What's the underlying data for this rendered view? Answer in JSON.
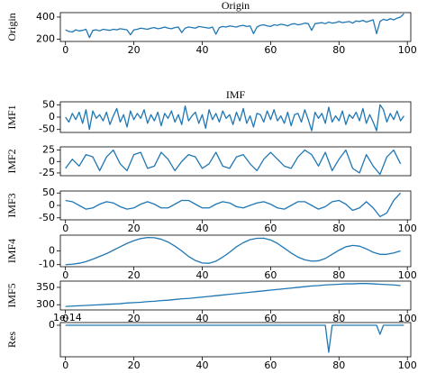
{
  "chart_data": [
    {
      "type": "line",
      "title": "Origin",
      "ylabel": "Origin",
      "color": "#1f77b4",
      "x": [
        0,
        1,
        2,
        3,
        4,
        5,
        6,
        7,
        8,
        9,
        10,
        11,
        12,
        13,
        14,
        15,
        16,
        17,
        18,
        19,
        20,
        21,
        22,
        23,
        24,
        25,
        26,
        27,
        28,
        29,
        30,
        31,
        32,
        33,
        34,
        35,
        36,
        37,
        38,
        39,
        40,
        41,
        42,
        43,
        44,
        45,
        46,
        47,
        48,
        49,
        50,
        51,
        52,
        53,
        54,
        55,
        56,
        57,
        58,
        59,
        60,
        61,
        62,
        63,
        64,
        65,
        66,
        67,
        68,
        69,
        70,
        71,
        72,
        73,
        74,
        75,
        76,
        77,
        78,
        79,
        80,
        81,
        82,
        83,
        84,
        85,
        86,
        87,
        88,
        89,
        90,
        91,
        92,
        93,
        94,
        95,
        96,
        97,
        98,
        99
      ],
      "values": [
        285,
        270,
        265,
        285,
        275,
        280,
        290,
        215,
        280,
        285,
        275,
        290,
        285,
        280,
        290,
        285,
        295,
        290,
        285,
        240,
        285,
        290,
        300,
        295,
        290,
        300,
        305,
        295,
        300,
        310,
        300,
        295,
        305,
        310,
        260,
        300,
        310,
        305,
        300,
        315,
        310,
        305,
        300,
        310,
        245,
        305,
        315,
        310,
        320,
        315,
        310,
        320,
        325,
        315,
        320,
        250,
        310,
        325,
        330,
        320,
        315,
        330,
        325,
        335,
        330,
        320,
        335,
        340,
        330,
        335,
        345,
        340,
        280,
        340,
        345,
        350,
        340,
        355,
        345,
        350,
        360,
        350,
        355,
        360,
        345,
        365,
        360,
        370,
        355,
        365,
        375,
        250,
        360,
        380,
        370,
        385,
        375,
        390,
        400,
        430
      ],
      "xlim": [
        -1.5,
        101
      ],
      "ylim": [
        180,
        440
      ],
      "xticks": [
        0,
        20,
        40,
        60,
        80,
        100
      ],
      "yticks": [
        200,
        400
      ]
    },
    {
      "type": "line",
      "title": "IMF",
      "ylabel": "IMF1",
      "color": "#1f77b4",
      "x": [
        0,
        1,
        2,
        3,
        4,
        5,
        6,
        7,
        8,
        9,
        10,
        11,
        12,
        13,
        14,
        15,
        16,
        17,
        18,
        19,
        20,
        21,
        22,
        23,
        24,
        25,
        26,
        27,
        28,
        29,
        30,
        31,
        32,
        33,
        34,
        35,
        36,
        37,
        38,
        39,
        40,
        41,
        42,
        43,
        44,
        45,
        46,
        47,
        48,
        49,
        50,
        51,
        52,
        53,
        54,
        55,
        56,
        57,
        58,
        59,
        60,
        61,
        62,
        63,
        64,
        65,
        66,
        67,
        68,
        69,
        70,
        71,
        72,
        73,
        74,
        75,
        76,
        77,
        78,
        79,
        80,
        81,
        82,
        83,
        84,
        85,
        86,
        87,
        88,
        89,
        90,
        91,
        92,
        93,
        94,
        95,
        96,
        97,
        98,
        99
      ],
      "values": [
        0,
        -20,
        15,
        -10,
        20,
        -25,
        30,
        -50,
        25,
        -5,
        10,
        -15,
        20,
        -30,
        5,
        35,
        -20,
        10,
        -40,
        25,
        -10,
        15,
        -5,
        30,
        -25,
        10,
        -15,
        20,
        -35,
        15,
        -5,
        25,
        -20,
        10,
        -30,
        45,
        -15,
        5,
        20,
        -25,
        10,
        -45,
        30,
        -10,
        15,
        -20,
        25,
        -5,
        10,
        -30,
        20,
        -15,
        35,
        -25,
        5,
        -40,
        15,
        10,
        -20,
        25,
        -10,
        30,
        -15,
        5,
        -25,
        20,
        -35,
        10,
        15,
        -20,
        30,
        -10,
        -55,
        20,
        -5,
        15,
        -25,
        40,
        -20,
        5,
        -15,
        25,
        -30,
        10,
        -5,
        20,
        -15,
        35,
        -25,
        10,
        -20,
        -55,
        50,
        30,
        -20,
        15,
        -10,
        25,
        -15,
        5
      ],
      "xlim": [
        -1.5,
        101
      ],
      "ylim": [
        -62,
        62
      ],
      "yticks": [
        -50,
        0,
        50
      ]
    },
    {
      "type": "line",
      "ylabel": "IMF2",
      "color": "#1f77b4",
      "x": [
        0,
        2,
        4,
        6,
        8,
        10,
        12,
        14,
        16,
        18,
        20,
        22,
        24,
        26,
        28,
        30,
        32,
        34,
        36,
        38,
        40,
        42,
        44,
        46,
        48,
        50,
        52,
        54,
        56,
        58,
        60,
        62,
        64,
        66,
        68,
        70,
        72,
        74,
        76,
        78,
        80,
        82,
        84,
        86,
        88,
        90,
        92,
        94,
        96,
        98
      ],
      "values": [
        -15,
        5,
        -10,
        15,
        10,
        -20,
        10,
        25,
        -5,
        -20,
        15,
        20,
        -15,
        -10,
        20,
        5,
        -20,
        0,
        15,
        10,
        -15,
        -5,
        20,
        -10,
        -15,
        10,
        15,
        -5,
        -20,
        5,
        20,
        5,
        -10,
        -15,
        10,
        25,
        15,
        -10,
        20,
        -20,
        5,
        25,
        -15,
        -25,
        15,
        -10,
        -28,
        10,
        25,
        -5
      ],
      "xlim": [
        -1.5,
        101
      ],
      "ylim": [
        -31,
        32
      ],
      "yticks": [
        -25,
        0,
        25
      ]
    },
    {
      "type": "line",
      "ylabel": "IMF3",
      "color": "#1f77b4",
      "x": [
        0,
        2,
        4,
        6,
        8,
        10,
        12,
        14,
        16,
        18,
        20,
        22,
        24,
        26,
        28,
        30,
        32,
        34,
        36,
        38,
        40,
        42,
        44,
        46,
        48,
        50,
        52,
        54,
        56,
        58,
        60,
        62,
        64,
        66,
        68,
        70,
        72,
        74,
        76,
        78,
        80,
        82,
        84,
        86,
        88,
        90,
        92,
        94,
        96,
        98
      ],
      "values": [
        20,
        15,
        0,
        -15,
        -10,
        5,
        15,
        10,
        -5,
        -15,
        -10,
        5,
        15,
        5,
        -10,
        -10,
        5,
        20,
        20,
        5,
        -10,
        -10,
        5,
        15,
        10,
        -5,
        -10,
        0,
        10,
        15,
        5,
        -10,
        -15,
        0,
        15,
        15,
        0,
        -15,
        -5,
        15,
        20,
        5,
        -20,
        -10,
        15,
        -10,
        -45,
        -30,
        20,
        50
      ],
      "xlim": [
        -1.5,
        101
      ],
      "ylim": [
        -58,
        58
      ],
      "xticks": [
        0,
        20,
        40,
        60,
        80,
        100
      ],
      "yticks": [
        -50,
        0,
        50
      ]
    },
    {
      "type": "line",
      "ylabel": "IMF4",
      "color": "#1f77b4",
      "x": [
        0,
        2,
        4,
        6,
        8,
        10,
        12,
        14,
        16,
        18,
        20,
        22,
        24,
        26,
        28,
        30,
        32,
        34,
        36,
        38,
        40,
        42,
        44,
        46,
        48,
        50,
        52,
        54,
        56,
        58,
        60,
        62,
        64,
        66,
        68,
        70,
        72,
        74,
        76,
        78,
        80,
        82,
        84,
        86,
        88,
        90,
        92,
        94,
        96,
        98
      ],
      "values": [
        -10,
        -9.7,
        -9,
        -7.8,
        -6,
        -4,
        -2,
        0.5,
        3,
        5.5,
        7.5,
        9,
        9.8,
        9.6,
        8.5,
        6.5,
        3.5,
        0,
        -4,
        -7,
        -8.8,
        -9,
        -7.5,
        -4.5,
        -1,
        3,
        6,
        8.2,
        9.2,
        9.3,
        8,
        5.5,
        2,
        -1.5,
        -4.5,
        -6.5,
        -7.5,
        -7.2,
        -5.5,
        -2.5,
        0.5,
        3,
        4,
        3.5,
        1.5,
        -1,
        -2.5,
        -2.5,
        -1.5,
        0
      ],
      "xlim": [
        -1.5,
        101
      ],
      "ylim": [
        -11.5,
        11.5
      ],
      "xticks": [
        0,
        20,
        40,
        60,
        80,
        100
      ],
      "yticks": [
        -10,
        0
      ]
    },
    {
      "type": "line",
      "ylabel": "IMF5",
      "color": "#1f77b4",
      "x": [
        0,
        2,
        4,
        6,
        8,
        10,
        12,
        14,
        16,
        18,
        20,
        22,
        24,
        26,
        28,
        30,
        32,
        34,
        36,
        38,
        40,
        42,
        44,
        46,
        48,
        50,
        52,
        54,
        56,
        58,
        60,
        62,
        64,
        66,
        68,
        70,
        72,
        74,
        76,
        78,
        80,
        82,
        84,
        86,
        88,
        90,
        92,
        94,
        96,
        98
      ],
      "values": [
        295,
        296,
        297,
        298,
        299,
        300,
        301,
        302,
        303,
        305,
        306,
        307,
        309,
        310,
        312,
        313,
        315,
        317,
        318,
        320,
        322,
        324,
        326,
        328,
        330,
        332,
        334,
        336,
        338,
        340,
        342,
        344,
        346,
        348,
        350,
        352,
        354,
        355,
        357,
        358,
        359,
        360,
        360,
        361,
        361,
        360,
        359,
        358,
        357,
        355
      ],
      "xlim": [
        -1.5,
        101
      ],
      "ylim": [
        285,
        368
      ],
      "xticks": [
        0,
        20,
        40,
        60,
        80,
        100
      ],
      "yticks": [
        300,
        350
      ]
    },
    {
      "type": "line",
      "ylabel": "Res",
      "color": "#1f77b4",
      "y_offset_label": "1e-14",
      "x": [
        0,
        10,
        20,
        30,
        40,
        50,
        60,
        70,
        75,
        76,
        77,
        78,
        79,
        85,
        90,
        91,
        92,
        93,
        94,
        99
      ],
      "values": [
        0,
        0,
        0,
        0,
        0,
        0,
        0,
        0,
        0,
        0,
        -6,
        0,
        0,
        0,
        0,
        0,
        -2,
        0,
        0,
        0
      ],
      "xlim": [
        -1.5,
        101
      ],
      "ylim": [
        -7,
        0.6
      ],
      "xticks": [
        0,
        20,
        40,
        60,
        80,
        100
      ],
      "yticks": [
        0
      ]
    }
  ]
}
